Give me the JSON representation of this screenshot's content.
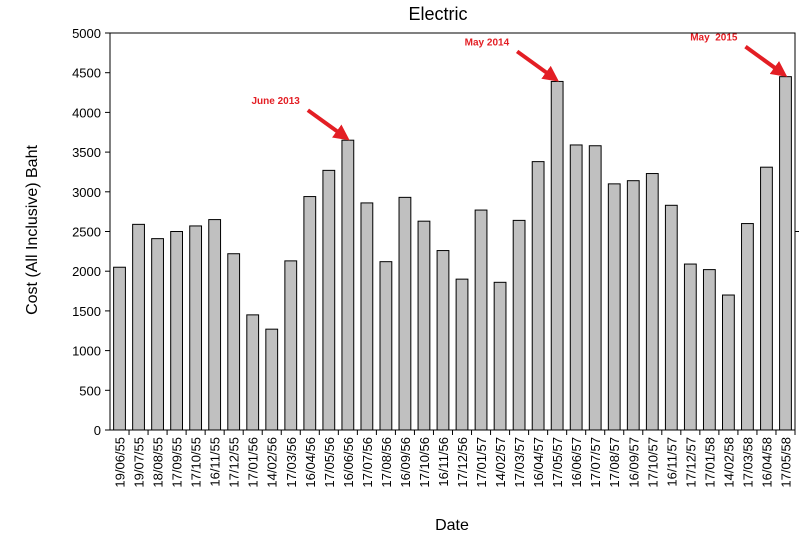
{
  "chart_data": {
    "type": "bar",
    "title": "Electric",
    "xlabel": "Date",
    "ylabel": "Cost (All Inclusive) Baht",
    "ylim": [
      0,
      5000
    ],
    "yticks": [
      0,
      500,
      1000,
      1500,
      2000,
      2500,
      3000,
      3500,
      4000,
      4500,
      5000
    ],
    "grid": false,
    "categories": [
      "19/06/55",
      "19/07/55",
      "18/08/55",
      "17/09/55",
      "17/10/55",
      "16/11/55",
      "17/12/55",
      "17/01/56",
      "14/02/56",
      "17/03/56",
      "16/04/56",
      "17/05/56",
      "16/06/56",
      "17/07/56",
      "17/08/56",
      "16/09/56",
      "17/10/56",
      "16/11/56",
      "17/12/56",
      "17/01/57",
      "14/02/57",
      "17/03/57",
      "16/04/57",
      "17/05/57",
      "16/06/57",
      "17/07/57",
      "17/08/57",
      "16/09/57",
      "17/10/57",
      "16/11/57",
      "17/12/57",
      "17/01/58",
      "14/02/58",
      "17/03/58",
      "16/04/58",
      "17/05/58"
    ],
    "values": [
      2050,
      2590,
      2410,
      2500,
      2570,
      2650,
      2220,
      1450,
      1270,
      2130,
      2940,
      3270,
      3650,
      2860,
      2120,
      2930,
      2630,
      2260,
      1900,
      2770,
      1860,
      2640,
      3380,
      4390,
      3590,
      3580,
      3100,
      3140,
      3230,
      2830,
      2090,
      2020,
      1700,
      2600,
      3310,
      4450
    ],
    "bar_color": "#c0c0c0",
    "annotation_color": "#e31e24",
    "annotations": [
      {
        "text": "June 2013",
        "category": "16/06/56"
      },
      {
        "text": "May 2014",
        "category": "17/05/57"
      },
      {
        "text": "May  2015",
        "category": "17/05/58"
      }
    ]
  }
}
